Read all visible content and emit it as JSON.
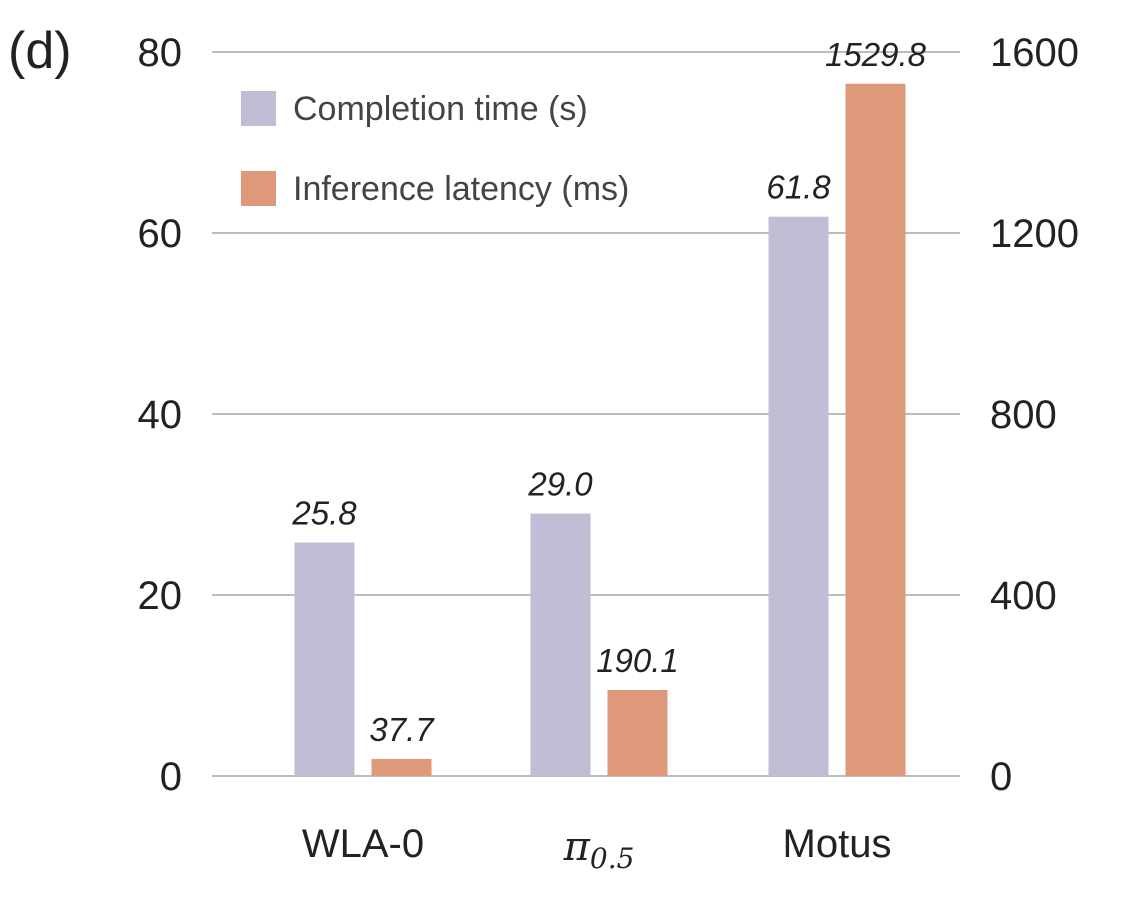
{
  "panel_label": "(d)",
  "colors": {
    "completion_time": "#c0bdd5",
    "inference_latency": "#de987a",
    "grid": "#bdbdbd",
    "text": "#222222"
  },
  "chart_data": {
    "type": "bar",
    "categories": [
      "WLA-0",
      "π0.5",
      "Motus"
    ],
    "category_display": [
      {
        "main": "WLA-0",
        "sub": ""
      },
      {
        "main": "π",
        "sub": "0.5"
      },
      {
        "main": "Motus",
        "sub": ""
      }
    ],
    "series": [
      {
        "name": "Completion time (s)",
        "axis": "left",
        "values": [
          25.8,
          29.0,
          61.8
        ],
        "labels": [
          "25.8",
          "29.0",
          "61.8"
        ]
      },
      {
        "name": "Inference latency (ms)",
        "axis": "right",
        "values": [
          37.7,
          190.1,
          1529.8
        ],
        "labels": [
          "37.7",
          "190.1",
          "1529.8"
        ]
      }
    ],
    "ylim_left": [
      0,
      80
    ],
    "yticks_left": [
      "0",
      "20",
      "40",
      "60",
      "80"
    ],
    "ylim_right": [
      0,
      1600
    ],
    "yticks_right": [
      "0",
      "400",
      "800",
      "1200",
      "1600"
    ],
    "grid": true,
    "legend_position": "top-left"
  }
}
